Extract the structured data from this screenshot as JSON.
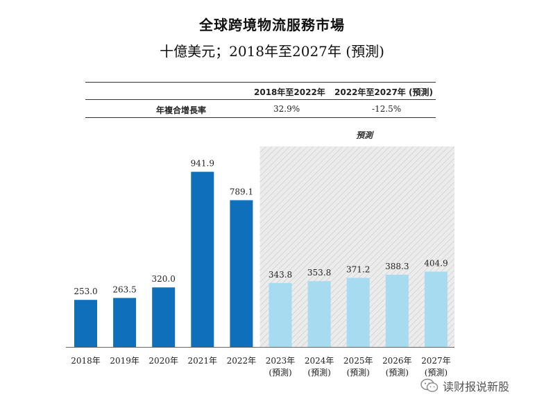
{
  "header": {
    "title": "全球跨境物流服務市場",
    "subtitle": "十億美元；2018年至2027年 (預測)"
  },
  "cagr_table": {
    "col1_header": "2018年至2022年",
    "col2_header": "2022年至2027年 (預測)",
    "row_label": "年複合增長率",
    "col1_value": "32.9%",
    "col2_value": "-12.5%"
  },
  "forecast_label": "預測",
  "watermark": {
    "icon": "wechat-icon",
    "text": "读财报说新股"
  },
  "colors": {
    "actual": "#0f6fba",
    "forecast": "#a6dbf0",
    "forecast_bg": "#e6e6e6"
  },
  "chart_data": {
    "type": "bar",
    "title": "全球跨境物流服務市場",
    "subtitle": "十億美元；2018年至2027年 (預測)",
    "categories": [
      "2018年",
      "2019年",
      "2020年",
      "2021年",
      "2022年",
      "2023年",
      "2024年",
      "2025年",
      "2026年",
      "2027年"
    ],
    "category_notes": [
      "",
      "",
      "",
      "",
      "",
      "(預測)",
      "(預測)",
      "(預測)",
      "(預測)",
      "(預測)"
    ],
    "values": [
      253.0,
      263.5,
      320.0,
      941.9,
      789.1,
      343.8,
      353.8,
      371.2,
      388.3,
      404.9
    ],
    "value_labels": [
      "253.0",
      "263.5",
      "320.0",
      "941.9",
      "789.1",
      "343.8",
      "353.8",
      "371.2",
      "388.3",
      "404.9"
    ],
    "forecast": [
      false,
      false,
      false,
      false,
      false,
      true,
      true,
      true,
      true,
      true
    ],
    "ylim": [
      0,
      1000
    ],
    "grid": false,
    "legend": "none"
  }
}
